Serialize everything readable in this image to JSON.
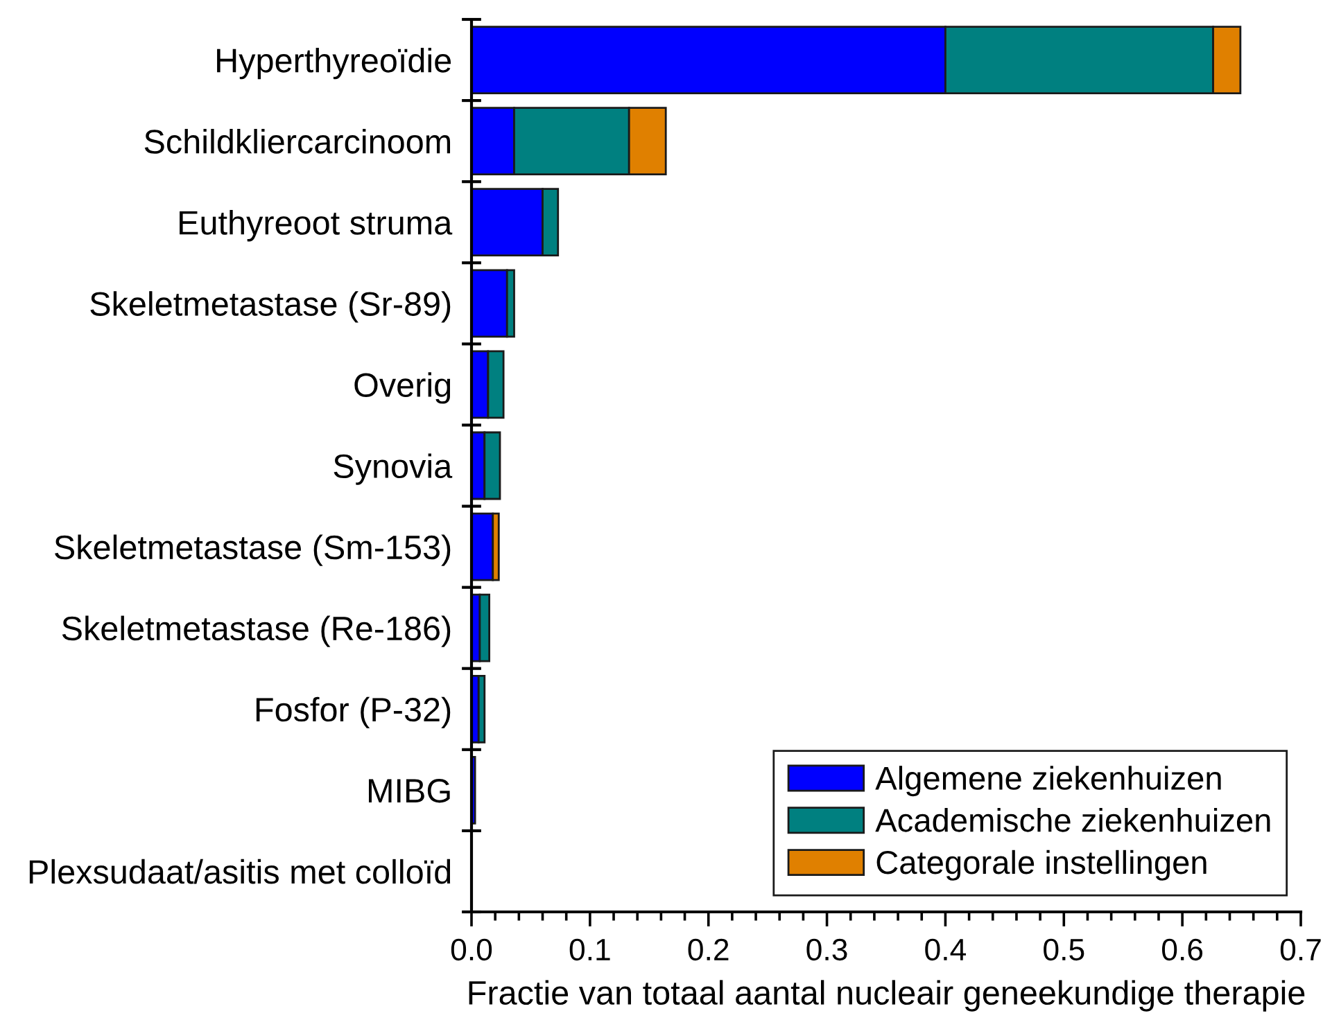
{
  "chart_data": {
    "type": "bar",
    "orientation": "horizontal",
    "stacked": true,
    "xlabel": "Fractie van totaal aantal nucleair geneekundige therapie",
    "categories": [
      "Hyperthyreoïdie",
      "Schildkliercarcinoom",
      "Euthyreoot struma",
      "Skeletmetastase (Sr-89)",
      "Overig",
      "Synovia",
      "Skeletmetastase (Sm-153)",
      "Skeletmetastase (Re-186)",
      "Fosfor (P-32)",
      "MIBG",
      "Plexsudaat/asitis met colloïd"
    ],
    "series": [
      {
        "name": "Algemene ziekenhuizen",
        "color": "#0000ff",
        "values": [
          0.4,
          0.036,
          0.06,
          0.03,
          0.014,
          0.011,
          0.018,
          0.007,
          0.006,
          0.003,
          0
        ]
      },
      {
        "name": "Academische ziekenhuizen",
        "color": "#008080",
        "values": [
          0.226,
          0.097,
          0.013,
          0.006,
          0.013,
          0.013,
          0,
          0.008,
          0.005,
          0,
          0
        ]
      },
      {
        "name": "Categorale instellingen",
        "color": "#e08000",
        "values": [
          0.023,
          0.031,
          0,
          0,
          0,
          0,
          0.005,
          0,
          0,
          0,
          0
        ]
      }
    ],
    "xlim": [
      0,
      0.7
    ],
    "xticks": [
      {
        "value": 0,
        "label": "0.0"
      },
      0.1,
      0.2,
      0.3,
      0.4,
      0.5,
      0.6,
      0.7
    ],
    "grid": false,
    "legend": "lower right"
  }
}
